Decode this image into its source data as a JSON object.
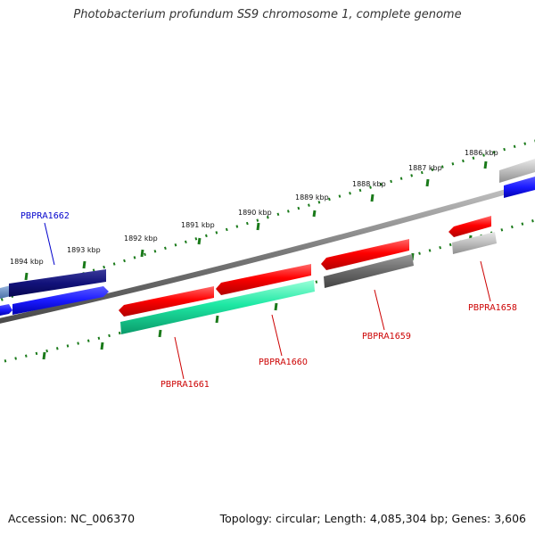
{
  "title": "Photobacterium profundum SS9 chromosome 1, complete genome",
  "footer": {
    "accession": "Accession: NC_006370",
    "summary": "Topology: circular; Length: 4,085,304 bp; Genes: 3,606"
  },
  "colors": {
    "backbone": "#888888",
    "tick": "#1a7a1a",
    "forward_label": "#0000cc",
    "reverse_label": "#cc0000"
  },
  "tick_labels": [
    "1886 kbp",
    "1887 kbp",
    "1888 kbp",
    "1889 kbp",
    "1890 kbp",
    "1891 kbp",
    "1892 kbp",
    "1893 kbp",
    "1894 kbp"
  ],
  "gene_labels": [
    "PBPRA1662",
    "PBPRA1661",
    "PBPRA1660",
    "PBPRA1659",
    "PBPRA1658"
  ]
}
